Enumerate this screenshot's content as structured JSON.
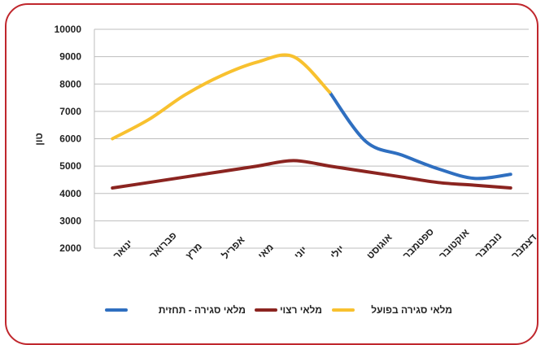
{
  "chart_data": {
    "type": "line",
    "categories": [
      "ינואר",
      "פברואר",
      "מרץ",
      "אפריל",
      "מאי",
      "יוני",
      "יולי",
      "אוגוסט",
      "ספטמבר",
      "אוקטובר",
      "נובמבר",
      "דצמבר"
    ],
    "ylabel": "טון",
    "ylim": [
      2000,
      10000
    ],
    "yticks": [
      2000,
      3000,
      4000,
      5000,
      6000,
      7000,
      8000,
      9000,
      10000
    ],
    "grid": true,
    "legend": "bottom",
    "series": [
      {
        "name": "מלאי סגירה - תחזית",
        "color": "#2f6fc0",
        "values": [
          null,
          null,
          null,
          null,
          null,
          null,
          7700,
          5900,
          5400,
          4900,
          4550,
          4700
        ]
      },
      {
        "name": "מלאי רצוי",
        "color": "#8b2420",
        "values": [
          4200,
          4400,
          4600,
          4800,
          5000,
          5200,
          5000,
          4800,
          4600,
          4400,
          4300,
          4200
        ]
      },
      {
        "name": "מלאי סגירה בפועל",
        "color": "#f8c12f",
        "values": [
          6000,
          6700,
          7600,
          8300,
          8800,
          9000,
          7700,
          null,
          null,
          null,
          null,
          null
        ]
      }
    ]
  }
}
